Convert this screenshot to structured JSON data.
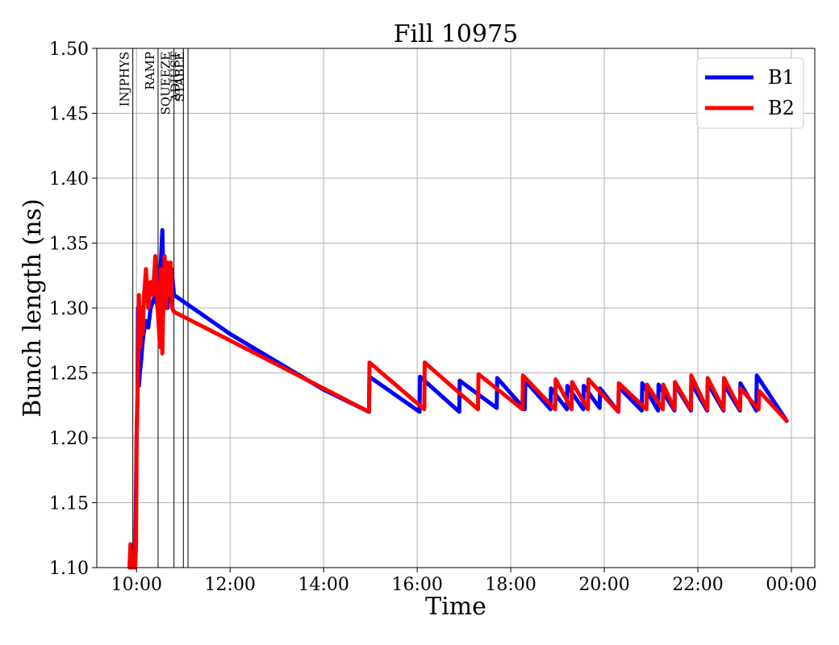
{
  "chart_data": {
    "type": "line",
    "title": "Fill 10975",
    "xlabel": "Time",
    "ylabel": "Bunch length (ns)",
    "ylim": [
      1.1,
      1.5
    ],
    "xlim_hours": [
      9.15,
      24.5
    ],
    "yticks": [
      "1.10",
      "1.15",
      "1.20",
      "1.25",
      "1.30",
      "1.35",
      "1.40",
      "1.45",
      "1.50"
    ],
    "xticks": [
      {
        "t": 10,
        "label": "10:00"
      },
      {
        "t": 12,
        "label": "12:00"
      },
      {
        "t": 14,
        "label": "14:00"
      },
      {
        "t": 16,
        "label": "16:00"
      },
      {
        "t": 18,
        "label": "18:00"
      },
      {
        "t": 20,
        "label": "20:00"
      },
      {
        "t": 22,
        "label": "22:00"
      },
      {
        "t": 24,
        "label": "00:00"
      }
    ],
    "grid": true,
    "legend_position": "top-right",
    "phases": [
      {
        "t": 9.92,
        "label": "INJPHYS"
      },
      {
        "t": 10.46,
        "label": "RAMP"
      },
      {
        "t": 10.8,
        "label": "SQUEEZE"
      },
      {
        "t": 11.0,
        "label": "ADJUST"
      },
      {
        "t": 11.1,
        "label": "STABLE"
      }
    ],
    "series": [
      {
        "name": "B1",
        "color": "#0000ff",
        "x": [
          9.85,
          9.87,
          9.9,
          9.92,
          9.95,
          9.97,
          10.0,
          10.02,
          10.03,
          10.05,
          10.07,
          10.1,
          10.12,
          10.15,
          10.2,
          10.25,
          10.3,
          10.35,
          10.4,
          10.45,
          10.5,
          10.55,
          10.57,
          10.6,
          10.63,
          10.66,
          10.7,
          10.75,
          10.8,
          12.0,
          14.0,
          14.97,
          14.98,
          16.05,
          16.06,
          16.9,
          16.91,
          17.7,
          17.71,
          18.3,
          18.31,
          18.85,
          18.86,
          19.2,
          19.21,
          19.55,
          19.56,
          19.9,
          19.91,
          20.3,
          20.31,
          20.8,
          20.81,
          21.15,
          21.16,
          21.5,
          21.51,
          21.85,
          21.86,
          22.2,
          22.21,
          22.55,
          22.56,
          22.9,
          22.91,
          23.25,
          23.26,
          23.9
        ],
        "y": [
          1.1,
          1.115,
          1.1,
          1.105,
          1.11,
          1.1,
          1.2,
          1.23,
          1.3,
          1.24,
          1.25,
          1.26,
          1.27,
          1.28,
          1.29,
          1.285,
          1.3,
          1.305,
          1.31,
          1.3,
          1.32,
          1.36,
          1.33,
          1.32,
          1.33,
          1.3,
          1.325,
          1.33,
          1.31,
          1.28,
          1.237,
          1.22,
          1.247,
          1.22,
          1.247,
          1.22,
          1.244,
          1.223,
          1.246,
          1.222,
          1.244,
          1.222,
          1.238,
          1.222,
          1.24,
          1.222,
          1.24,
          1.223,
          1.238,
          1.22,
          1.239,
          1.221,
          1.242,
          1.221,
          1.241,
          1.221,
          1.241,
          1.221,
          1.242,
          1.221,
          1.242,
          1.221,
          1.241,
          1.221,
          1.242,
          1.221,
          1.248,
          1.213
        ]
      },
      {
        "name": "B2",
        "color": "#ff0000",
        "x": [
          9.85,
          9.87,
          9.9,
          9.92,
          9.95,
          9.97,
          9.99,
          10.0,
          10.03,
          10.05,
          10.08,
          10.1,
          10.13,
          10.16,
          10.2,
          10.25,
          10.3,
          10.35,
          10.4,
          10.45,
          10.5,
          10.52,
          10.55,
          10.57,
          10.6,
          10.63,
          10.66,
          10.7,
          10.73,
          10.76,
          10.8,
          12.0,
          14.0,
          14.97,
          14.98,
          16.15,
          16.16,
          17.3,
          17.31,
          18.25,
          18.26,
          18.95,
          18.96,
          19.3,
          19.31,
          19.65,
          19.66,
          20.3,
          20.31,
          20.9,
          20.91,
          21.25,
          21.26,
          21.5,
          21.51,
          21.85,
          21.86,
          22.2,
          22.21,
          22.55,
          22.56,
          22.9,
          22.91,
          23.3,
          23.31,
          23.9
        ],
        "y": [
          1.1,
          1.118,
          1.1,
          1.112,
          1.108,
          1.1,
          1.12,
          1.2,
          1.25,
          1.31,
          1.27,
          1.3,
          1.28,
          1.31,
          1.33,
          1.3,
          1.32,
          1.31,
          1.34,
          1.3,
          1.27,
          1.33,
          1.265,
          1.3,
          1.34,
          1.3,
          1.335,
          1.31,
          1.335,
          1.3,
          1.297,
          1.275,
          1.238,
          1.22,
          1.258,
          1.222,
          1.258,
          1.222,
          1.249,
          1.222,
          1.248,
          1.222,
          1.245,
          1.222,
          1.243,
          1.222,
          1.245,
          1.22,
          1.242,
          1.222,
          1.241,
          1.222,
          1.241,
          1.222,
          1.243,
          1.222,
          1.248,
          1.222,
          1.246,
          1.222,
          1.246,
          1.222,
          1.238,
          1.222,
          1.236,
          1.213
        ]
      }
    ]
  }
}
